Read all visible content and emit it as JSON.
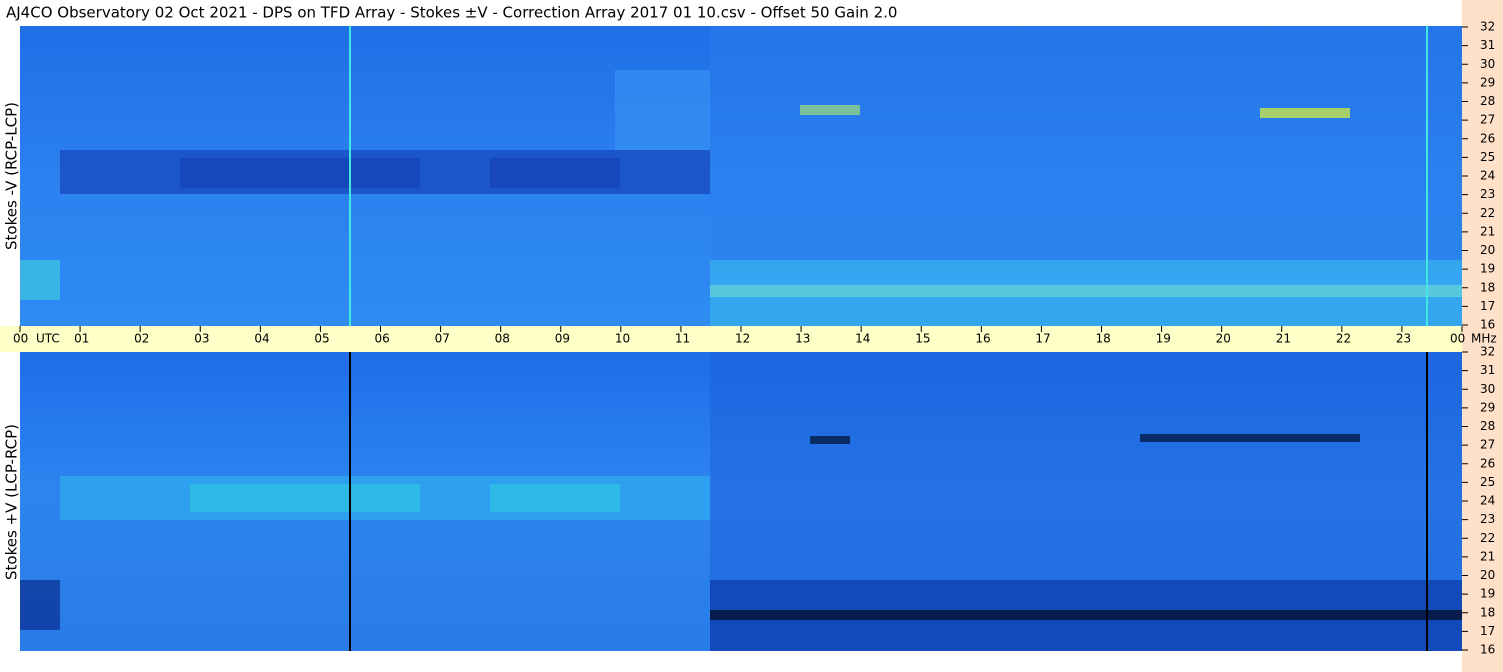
{
  "chart_data": {
    "type": "spectrogram",
    "title": "AJ4CO Observatory  02 Oct 2021  -  DPS on TFD Array  -  Stokes ±V  -  Correction Array 2017 01 10.csv  -  Offset 50  Gain 2.0",
    "panels": [
      {
        "ylabel": "Stokes -V (RCP-LCP)"
      },
      {
        "ylabel": "Stokes +V (LCP-RCP)"
      }
    ],
    "xunit": "UTC",
    "yunit": "MHz",
    "xlim": [
      0,
      24
    ],
    "xticks": [
      {
        "value": 0,
        "label": "00"
      },
      {
        "value": 1,
        "label": "01"
      },
      {
        "value": 2,
        "label": "02"
      },
      {
        "value": 3,
        "label": "03"
      },
      {
        "value": 4,
        "label": "04"
      },
      {
        "value": 5,
        "label": "05"
      },
      {
        "value": 6,
        "label": "06"
      },
      {
        "value": 7,
        "label": "07"
      },
      {
        "value": 8,
        "label": "08"
      },
      {
        "value": 9,
        "label": "09"
      },
      {
        "value": 10,
        "label": "10"
      },
      {
        "value": 11,
        "label": "11"
      },
      {
        "value": 12,
        "label": "12"
      },
      {
        "value": 13,
        "label": "13"
      },
      {
        "value": 14,
        "label": "14"
      },
      {
        "value": 15,
        "label": "15"
      },
      {
        "value": 16,
        "label": "16"
      },
      {
        "value": 17,
        "label": "17"
      },
      {
        "value": 18,
        "label": "18"
      },
      {
        "value": 19,
        "label": "19"
      },
      {
        "value": 20,
        "label": "20"
      },
      {
        "value": 21,
        "label": "21"
      },
      {
        "value": 22,
        "label": "22"
      },
      {
        "value": 23,
        "label": "23"
      },
      {
        "value": 24,
        "label": "00"
      }
    ],
    "ylim": [
      16,
      32
    ],
    "yticks": [
      16,
      17,
      18,
      19,
      20,
      21,
      22,
      23,
      24,
      25,
      26,
      27,
      28,
      29,
      30,
      31,
      32
    ]
  }
}
